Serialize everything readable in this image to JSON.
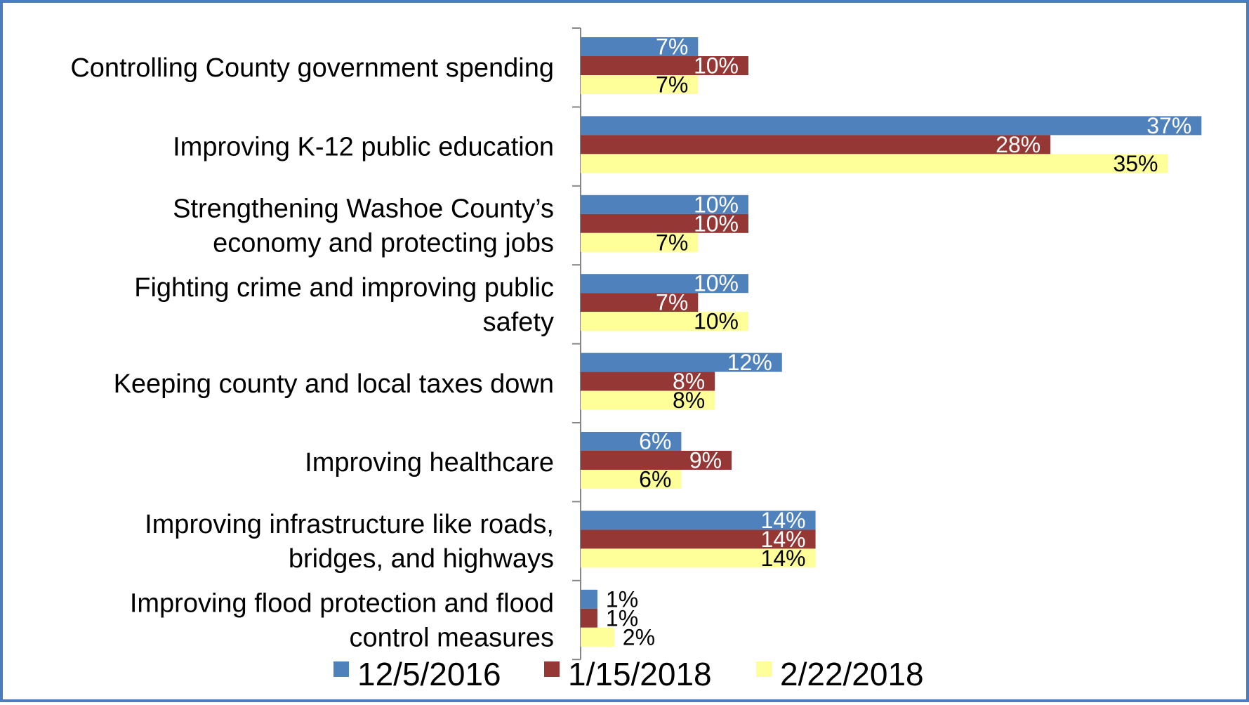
{
  "chart_data": {
    "type": "bar",
    "orientation": "horizontal",
    "categories": [
      "Controlling County government spending",
      "Improving K-12 public education",
      "Strengthening Washoe County’s economy and protecting jobs",
      "Fighting crime and improving public safety",
      "Keeping county and local taxes down",
      "Improving healthcare",
      "Improving infrastructure like roads, bridges, and highways",
      "Improving flood protection and flood control measures"
    ],
    "category_lines": [
      [
        "Controlling County government spending"
      ],
      [
        "Improving K-12 public education"
      ],
      [
        "Strengthening Washoe County’s",
        "economy and protecting jobs"
      ],
      [
        "Fighting crime and improving public",
        "safety"
      ],
      [
        "Keeping county and local taxes down"
      ],
      [
        "Improving healthcare"
      ],
      [
        "Improving infrastructure like roads,",
        "bridges, and highways"
      ],
      [
        "Improving flood protection and flood",
        "control measures"
      ]
    ],
    "series": [
      {
        "name": "12/5/2016",
        "color": "#4f81bd",
        "label_color": "#ffffff",
        "values": [
          7,
          37,
          10,
          10,
          12,
          6,
          14,
          1
        ]
      },
      {
        "name": "1/15/2018",
        "color": "#953735",
        "label_color": "#ffffff",
        "values": [
          10,
          28,
          10,
          7,
          8,
          9,
          14,
          1
        ]
      },
      {
        "name": "2/22/2018",
        "color": "#ffff99",
        "label_color": "#000000",
        "values": [
          7,
          35,
          7,
          10,
          8,
          6,
          14,
          2
        ]
      }
    ],
    "value_suffix": "%",
    "xlim": [
      0,
      40
    ],
    "grid": false,
    "legend_position": "bottom"
  }
}
